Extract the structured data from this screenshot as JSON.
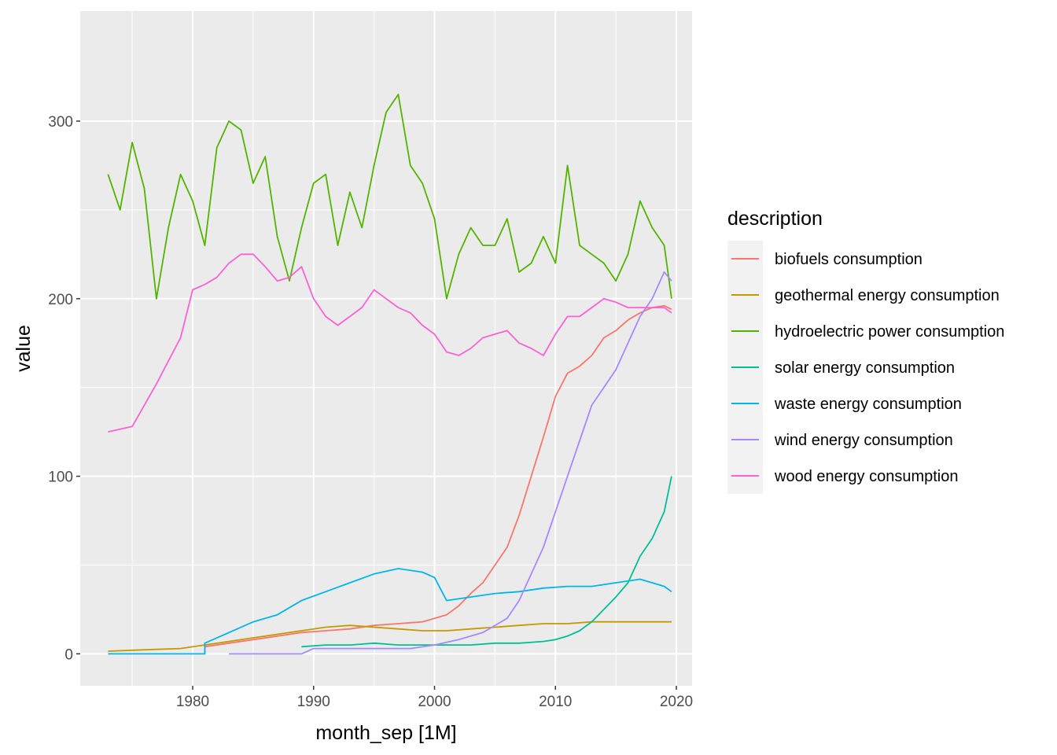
{
  "chart_data": {
    "type": "line",
    "title": "",
    "xlabel": "month_sep [1M]",
    "ylabel": "value",
    "xlim": [
      1970.7,
      2021.3
    ],
    "ylim": [
      -18,
      362
    ],
    "x_ticks": [
      1980,
      1990,
      2000,
      2010,
      2020
    ],
    "y_ticks": [
      0,
      100,
      200,
      300
    ],
    "grid": true,
    "legend": {
      "title": "description",
      "position": "right"
    },
    "series": [
      {
        "name": "biofuels consumption",
        "color": "#F8766D",
        "points": [
          [
            1981,
            0
          ],
          [
            1981,
            4
          ],
          [
            1983,
            6
          ],
          [
            1985,
            8
          ],
          [
            1987,
            10
          ],
          [
            1989,
            12
          ],
          [
            1991,
            13
          ],
          [
            1993,
            14
          ],
          [
            1995,
            16
          ],
          [
            1997,
            17
          ],
          [
            1999,
            18
          ],
          [
            2000,
            20
          ],
          [
            2001,
            22
          ],
          [
            2002,
            27
          ],
          [
            2003,
            34
          ],
          [
            2004,
            40
          ],
          [
            2005,
            50
          ],
          [
            2006,
            60
          ],
          [
            2007,
            78
          ],
          [
            2008,
            100
          ],
          [
            2009,
            122
          ],
          [
            2010,
            145
          ],
          [
            2011,
            158
          ],
          [
            2012,
            162
          ],
          [
            2013,
            168
          ],
          [
            2014,
            178
          ],
          [
            2015,
            182
          ],
          [
            2016,
            188
          ],
          [
            2017,
            192
          ],
          [
            2018,
            195
          ],
          [
            2019,
            196
          ],
          [
            2019.6,
            194
          ]
        ]
      },
      {
        "name": "geothermal energy consumption",
        "color": "#C49A00",
        "points": [
          [
            1973,
            1.5
          ],
          [
            1975,
            2
          ],
          [
            1977,
            2.5
          ],
          [
            1979,
            3
          ],
          [
            1981,
            5
          ],
          [
            1983,
            7
          ],
          [
            1985,
            9
          ],
          [
            1987,
            11
          ],
          [
            1989,
            13
          ],
          [
            1991,
            15
          ],
          [
            1993,
            16
          ],
          [
            1995,
            15
          ],
          [
            1997,
            14
          ],
          [
            1999,
            13
          ],
          [
            2001,
            13
          ],
          [
            2003,
            14
          ],
          [
            2005,
            15
          ],
          [
            2007,
            16
          ],
          [
            2009,
            17
          ],
          [
            2011,
            17
          ],
          [
            2013,
            18
          ],
          [
            2015,
            18
          ],
          [
            2017,
            18
          ],
          [
            2019,
            18
          ],
          [
            2019.6,
            18
          ]
        ]
      },
      {
        "name": "hydroelectric power consumption",
        "color": "#53B400",
        "points": [
          [
            1973,
            270
          ],
          [
            1974,
            250
          ],
          [
            1975,
            288
          ],
          [
            1976,
            262
          ],
          [
            1977,
            200
          ],
          [
            1978,
            240
          ],
          [
            1979,
            270
          ],
          [
            1980,
            255
          ],
          [
            1981,
            230
          ],
          [
            1982,
            285
          ],
          [
            1983,
            300
          ],
          [
            1984,
            295
          ],
          [
            1985,
            265
          ],
          [
            1986,
            280
          ],
          [
            1987,
            235
          ],
          [
            1988,
            210
          ],
          [
            1989,
            240
          ],
          [
            1990,
            265
          ],
          [
            1991,
            270
          ],
          [
            1992,
            230
          ],
          [
            1993,
            260
          ],
          [
            1994,
            240
          ],
          [
            1995,
            275
          ],
          [
            1996,
            305
          ],
          [
            1997,
            315
          ],
          [
            1998,
            275
          ],
          [
            1999,
            265
          ],
          [
            2000,
            245
          ],
          [
            2001,
            200
          ],
          [
            2002,
            225
          ],
          [
            2003,
            240
          ],
          [
            2004,
            230
          ],
          [
            2005,
            230
          ],
          [
            2006,
            245
          ],
          [
            2007,
            215
          ],
          [
            2008,
            220
          ],
          [
            2009,
            235
          ],
          [
            2010,
            220
          ],
          [
            2011,
            275
          ],
          [
            2012,
            230
          ],
          [
            2013,
            225
          ],
          [
            2014,
            220
          ],
          [
            2015,
            210
          ],
          [
            2016,
            225
          ],
          [
            2017,
            255
          ],
          [
            2018,
            240
          ],
          [
            2019,
            230
          ],
          [
            2019.6,
            200
          ]
        ]
      },
      {
        "name": "solar energy consumption",
        "color": "#00C094",
        "points": [
          [
            1989,
            4
          ],
          [
            1991,
            5
          ],
          [
            1993,
            5
          ],
          [
            1995,
            6
          ],
          [
            1997,
            5
          ],
          [
            1999,
            5
          ],
          [
            2001,
            5
          ],
          [
            2003,
            5
          ],
          [
            2005,
            6
          ],
          [
            2007,
            6
          ],
          [
            2009,
            7
          ],
          [
            2010,
            8
          ],
          [
            2011,
            10
          ],
          [
            2012,
            13
          ],
          [
            2013,
            18
          ],
          [
            2014,
            25
          ],
          [
            2015,
            32
          ],
          [
            2016,
            40
          ],
          [
            2017,
            55
          ],
          [
            2018,
            65
          ],
          [
            2019,
            80
          ],
          [
            2019.6,
            100
          ]
        ]
      },
      {
        "name": "waste energy consumption",
        "color": "#00B6EB",
        "points": [
          [
            1973,
            0
          ],
          [
            1981,
            0
          ],
          [
            1981,
            6
          ],
          [
            1983,
            12
          ],
          [
            1985,
            18
          ],
          [
            1987,
            22
          ],
          [
            1989,
            30
          ],
          [
            1991,
            35
          ],
          [
            1993,
            40
          ],
          [
            1995,
            45
          ],
          [
            1997,
            48
          ],
          [
            1999,
            46
          ],
          [
            2000,
            43
          ],
          [
            2001,
            30
          ],
          [
            2002,
            31
          ],
          [
            2003,
            32
          ],
          [
            2005,
            34
          ],
          [
            2007,
            35
          ],
          [
            2009,
            37
          ],
          [
            2011,
            38
          ],
          [
            2013,
            38
          ],
          [
            2015,
            40
          ],
          [
            2017,
            42
          ],
          [
            2018,
            40
          ],
          [
            2019,
            38
          ],
          [
            2019.6,
            35
          ]
        ]
      },
      {
        "name": "wind energy consumption",
        "color": "#A58AFF",
        "points": [
          [
            1983,
            0
          ],
          [
            1989,
            0
          ],
          [
            1990,
            3
          ],
          [
            1992,
            3
          ],
          [
            1994,
            3
          ],
          [
            1996,
            3
          ],
          [
            1998,
            3
          ],
          [
            2000,
            5
          ],
          [
            2002,
            8
          ],
          [
            2004,
            12
          ],
          [
            2006,
            20
          ],
          [
            2007,
            30
          ],
          [
            2008,
            45
          ],
          [
            2009,
            60
          ],
          [
            2010,
            80
          ],
          [
            2011,
            100
          ],
          [
            2012,
            120
          ],
          [
            2013,
            140
          ],
          [
            2014,
            150
          ],
          [
            2015,
            160
          ],
          [
            2016,
            175
          ],
          [
            2017,
            190
          ],
          [
            2018,
            200
          ],
          [
            2019,
            215
          ],
          [
            2019.6,
            210
          ]
        ]
      },
      {
        "name": "wood energy consumption",
        "color": "#FB61D7",
        "points": [
          [
            1973,
            125
          ],
          [
            1975,
            128
          ],
          [
            1976,
            140
          ],
          [
            1977,
            152
          ],
          [
            1978,
            165
          ],
          [
            1979,
            178
          ],
          [
            1980,
            205
          ],
          [
            1981,
            208
          ],
          [
            1982,
            212
          ],
          [
            1983,
            220
          ],
          [
            1984,
            225
          ],
          [
            1985,
            225
          ],
          [
            1986,
            218
          ],
          [
            1987,
            210
          ],
          [
            1988,
            212
          ],
          [
            1989,
            218
          ],
          [
            1990,
            200
          ],
          [
            1991,
            190
          ],
          [
            1992,
            185
          ],
          [
            1993,
            190
          ],
          [
            1994,
            195
          ],
          [
            1995,
            205
          ],
          [
            1996,
            200
          ],
          [
            1997,
            195
          ],
          [
            1998,
            192
          ],
          [
            1999,
            185
          ],
          [
            2000,
            180
          ],
          [
            2001,
            170
          ],
          [
            2002,
            168
          ],
          [
            2003,
            172
          ],
          [
            2004,
            178
          ],
          [
            2005,
            180
          ],
          [
            2006,
            182
          ],
          [
            2007,
            175
          ],
          [
            2008,
            172
          ],
          [
            2009,
            168
          ],
          [
            2010,
            180
          ],
          [
            2011,
            190
          ],
          [
            2012,
            190
          ],
          [
            2013,
            195
          ],
          [
            2014,
            200
          ],
          [
            2015,
            198
          ],
          [
            2016,
            195
          ],
          [
            2017,
            195
          ],
          [
            2018,
            195
          ],
          [
            2019,
            195
          ],
          [
            2019.6,
            192
          ]
        ]
      }
    ]
  }
}
